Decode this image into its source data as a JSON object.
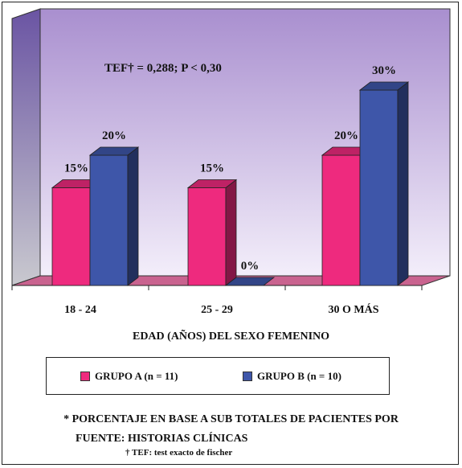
{
  "chart_data": {
    "type": "bar",
    "categories": [
      "18 - 24",
      "25 - 29",
      "30 O MÁS"
    ],
    "series": [
      {
        "name": "GRUPO A (n = 11)",
        "values": [
          15,
          15,
          20
        ],
        "labels": [
          "15%",
          "15%",
          "20%"
        ],
        "color": "#ee2a7e"
      },
      {
        "name": "GRUPO B (n = 10)",
        "values": [
          20,
          0,
          30
        ],
        "labels": [
          "20%",
          "0%",
          "30%"
        ],
        "color": "#3e56a9"
      }
    ],
    "ylim": [
      0,
      40
    ],
    "grid": false,
    "xlabel": "EDAD (AÑOS) DEL SEXO FEMENINO",
    "annotation": "TEF† = 0,288; P < 0,30",
    "legend_position": "bottom"
  },
  "footnotes": {
    "line1": "* PORCENTAJE EN BASE A SUB TOTALES DE PACIENTES POR",
    "line2": "FUENTE: HISTORIAS CLÍNICAS",
    "line3": "† TEF: test exacto de fischer"
  },
  "colors": {
    "wall_top": "#a98fcf",
    "wall_bottom": "#f3eefa",
    "floor": "#c9638f"
  }
}
